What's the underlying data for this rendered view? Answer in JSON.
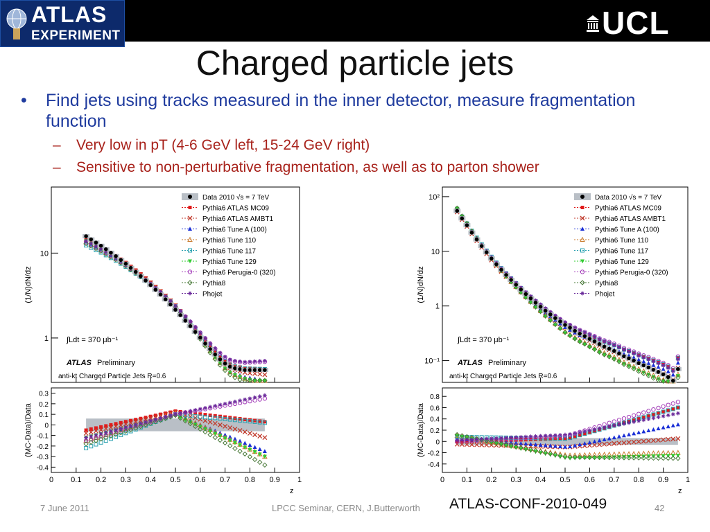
{
  "header": {
    "atlas_logo": {
      "line1": "ATLAS",
      "line2": "EXPERIMENT"
    },
    "ucl_logo": "UCL"
  },
  "slide": {
    "title": "Charged particle jets",
    "bullet": "Find jets using tracks measured in the inner detector, measure fragmentation function",
    "subbullets": [
      "Very low in pT (4-6 GeV left, 15-24 GeV right)",
      "Sensitive to non-perturbative fragmentation, as well as to parton shower"
    ]
  },
  "footer": {
    "date": "7 June 2011",
    "center": "LPCC Seminar, CERN, J.Butterworth",
    "conf_note": "ATLAS-CONF-2010-049",
    "page": "42"
  },
  "colors": {
    "title": "#111111",
    "bullet": "#1f3b9e",
    "subbullet": "#a8221b",
    "footer": "#8a8a8a"
  },
  "chart_data": [
    {
      "type": "scatter",
      "log_y": true,
      "ylabel": "(1/N_jet)dN_track/dz_track",
      "ratio_ylabel": "(MC-Data)/Data",
      "xlabel": "z_track",
      "x_ticks": [
        "0",
        "0.1",
        "0.2",
        "0.3",
        "0.4",
        "0.5",
        "0.6",
        "0.7",
        "0.8",
        "0.9",
        "1"
      ],
      "y_ticks": [
        "10",
        "1"
      ],
      "ratio_ticks": [
        "0.3",
        "0.2",
        "0.1",
        "0",
        "-0.1",
        "-0.2",
        "-0.3",
        "-0.4"
      ],
      "ylim": [
        0.3,
        60
      ],
      "ratio_ylim": [
        -0.45,
        0.35
      ],
      "legend": [
        "Data 2010  √s = 7 TeV",
        "Pythia6 ATLAS MC09",
        "Pythia6 ATLAS AMBT1",
        "Pythia6 Tune A (100)",
        "Pythia6 Tune 110",
        "Pythia6 Tune 117",
        "Pythia6 Tune 129",
        "Pythia6 Perugia-0 (320)",
        "Pythia8",
        "Phojet"
      ],
      "legend_position": "top-right",
      "annotations": [
        "∫Ldt = 370 μb⁻¹",
        "ATLAS",
        "Preliminary",
        "anti-kt Charged Particle Jets R=0.6"
      ],
      "x": [
        0.14,
        0.16,
        0.18,
        0.2,
        0.22,
        0.24,
        0.26,
        0.28,
        0.3,
        0.32,
        0.34,
        0.36,
        0.38,
        0.4,
        0.42,
        0.44,
        0.46,
        0.48,
        0.5,
        0.52,
        0.54,
        0.56,
        0.58,
        0.6,
        0.62,
        0.64,
        0.66,
        0.68,
        0.7,
        0.72,
        0.74,
        0.76,
        0.78,
        0.8,
        0.82,
        0.84,
        0.86
      ],
      "data": [
        15.8,
        14.5,
        13.3,
        12.2,
        11.1,
        10.1,
        9.2,
        8.3,
        7.5,
        6.7,
        6.0,
        5.35,
        4.75,
        4.2,
        3.7,
        3.25,
        2.85,
        2.48,
        2.15,
        1.86,
        1.6,
        1.38,
        1.18,
        1.01,
        0.86,
        0.74,
        0.64,
        0.56,
        0.5,
        0.46,
        0.44,
        0.43,
        0.42,
        0.42,
        0.42,
        0.42,
        0.42
      ],
      "mc_ratio": [
        {
          "name": "Pythia6 ATLAS MC09",
          "color": "#e01b1b",
          "start": -0.05,
          "peak": 0.13,
          "end": 0.03
        },
        {
          "name": "Pythia6 ATLAS AMBT1",
          "color": "#c0392b",
          "start": -0.08,
          "peak": 0.12,
          "end": -0.12
        },
        {
          "name": "Pythia6 Tune A (100)",
          "color": "#1a2fd6",
          "start": -0.13,
          "peak": 0.1,
          "end": -0.25
        },
        {
          "name": "Pythia6 Tune 110",
          "color": "#c87a2c",
          "start": -0.15,
          "peak": 0.11,
          "end": -0.3
        },
        {
          "name": "Pythia6 Tune 117",
          "color": "#2aa1b0",
          "start": -0.22,
          "peak": 0.1,
          "end": 0.02
        },
        {
          "name": "Pythia6 Tune 129",
          "color": "#33cc33",
          "start": -0.12,
          "peak": 0.09,
          "end": -0.3
        },
        {
          "name": "Pythia6 Perugia-0 (320)",
          "color": "#a23bb8",
          "start": -0.15,
          "peak": 0.1,
          "end": 0.25
        },
        {
          "name": "Pythia8",
          "color": "#4a7a3a",
          "start": -0.18,
          "peak": 0.09,
          "end": -0.38
        },
        {
          "name": "Phojet",
          "color": "#6a2a9a",
          "start": -0.12,
          "peak": 0.1,
          "end": 0.28
        }
      ]
    },
    {
      "type": "scatter",
      "log_y": true,
      "ylabel": "(1/N_jet)dN_track/dz_track",
      "ratio_ylabel": "(MC-Data)/Data",
      "xlabel": "z_track",
      "x_ticks": [
        "0",
        "0.1",
        "0.2",
        "0.3",
        "0.4",
        "0.5",
        "0.6",
        "0.7",
        "0.8",
        "0.9",
        "1"
      ],
      "y_ticks": [
        "10²",
        "10",
        "1",
        "10⁻¹"
      ],
      "ratio_ticks": [
        "0.8",
        "0.6",
        "0.4",
        "0.2",
        "0",
        "-0.2",
        "-0.4"
      ],
      "ylim": [
        0.04,
        150
      ],
      "ratio_ylim": [
        -0.55,
        0.95
      ],
      "legend": [
        "Data 2010  √s = 7 TeV",
        "Pythia6 ATLAS MC09",
        "Pythia6 ATLAS AMBT1",
        "Pythia6 Tune A (100)",
        "Pythia6 Tune 110",
        "Pythia6 Tune 117",
        "Pythia6 Tune 129",
        "Pythia6 Perugia-0 (320)",
        "Pythia8",
        "Phojet"
      ],
      "legend_position": "top-right",
      "annotations": [
        "∫Ldt = 370 μb⁻¹",
        "ATLAS",
        "Preliminary",
        "anti-kt Charged Particle Jets R=0.6"
      ],
      "x": [
        0.06,
        0.08,
        0.1,
        0.12,
        0.14,
        0.16,
        0.18,
        0.2,
        0.22,
        0.24,
        0.26,
        0.28,
        0.3,
        0.32,
        0.34,
        0.36,
        0.38,
        0.4,
        0.42,
        0.44,
        0.46,
        0.48,
        0.5,
        0.52,
        0.54,
        0.56,
        0.58,
        0.6,
        0.62,
        0.64,
        0.66,
        0.68,
        0.7,
        0.72,
        0.74,
        0.76,
        0.78,
        0.8,
        0.82,
        0.84,
        0.86,
        0.88,
        0.9,
        0.92,
        0.94,
        0.96
      ],
      "data": [
        55,
        40,
        30,
        22,
        16.5,
        12.5,
        9.6,
        7.4,
        5.8,
        4.6,
        3.7,
        3.0,
        2.45,
        2.0,
        1.65,
        1.38,
        1.15,
        0.97,
        0.82,
        0.7,
        0.6,
        0.52,
        0.45,
        0.4,
        0.35,
        0.31,
        0.28,
        0.25,
        0.225,
        0.2,
        0.18,
        0.165,
        0.15,
        0.135,
        0.12,
        0.11,
        0.1,
        0.09,
        0.082,
        0.075,
        0.068,
        0.062,
        0.056,
        0.05,
        0.043,
        0.07
      ],
      "mc_ratio": [
        {
          "name": "Pythia6 ATLAS MC09",
          "color": "#e01b1b",
          "start": 0.0,
          "mid": 0.05,
          "end": 0.6
        },
        {
          "name": "Pythia6 ATLAS AMBT1",
          "color": "#c0392b",
          "start": -0.05,
          "mid": -0.1,
          "end": 0.05
        },
        {
          "name": "Pythia6 Tune A (100)",
          "color": "#1a2fd6",
          "start": 0.05,
          "mid": -0.1,
          "end": 0.3
        },
        {
          "name": "Pythia6 Tune 110",
          "color": "#c87a2c",
          "start": 0.1,
          "mid": -0.25,
          "end": -0.2
        },
        {
          "name": "Pythia6 Tune 117",
          "color": "#2aa1b0",
          "start": 0.08,
          "mid": 0.05,
          "end": 0.6
        },
        {
          "name": "Pythia6 Tune 129",
          "color": "#33cc33",
          "start": 0.1,
          "mid": -0.3,
          "end": -0.25
        },
        {
          "name": "Pythia6 Perugia-0 (320)",
          "color": "#a23bb8",
          "start": 0.0,
          "mid": 0.1,
          "end": 0.7
        },
        {
          "name": "Pythia8",
          "color": "#4a7a3a",
          "start": 0.12,
          "mid": -0.28,
          "end": -0.3
        },
        {
          "name": "Phojet",
          "color": "#6a2a9a",
          "start": 0.02,
          "mid": 0.12,
          "end": 0.5
        }
      ]
    }
  ]
}
